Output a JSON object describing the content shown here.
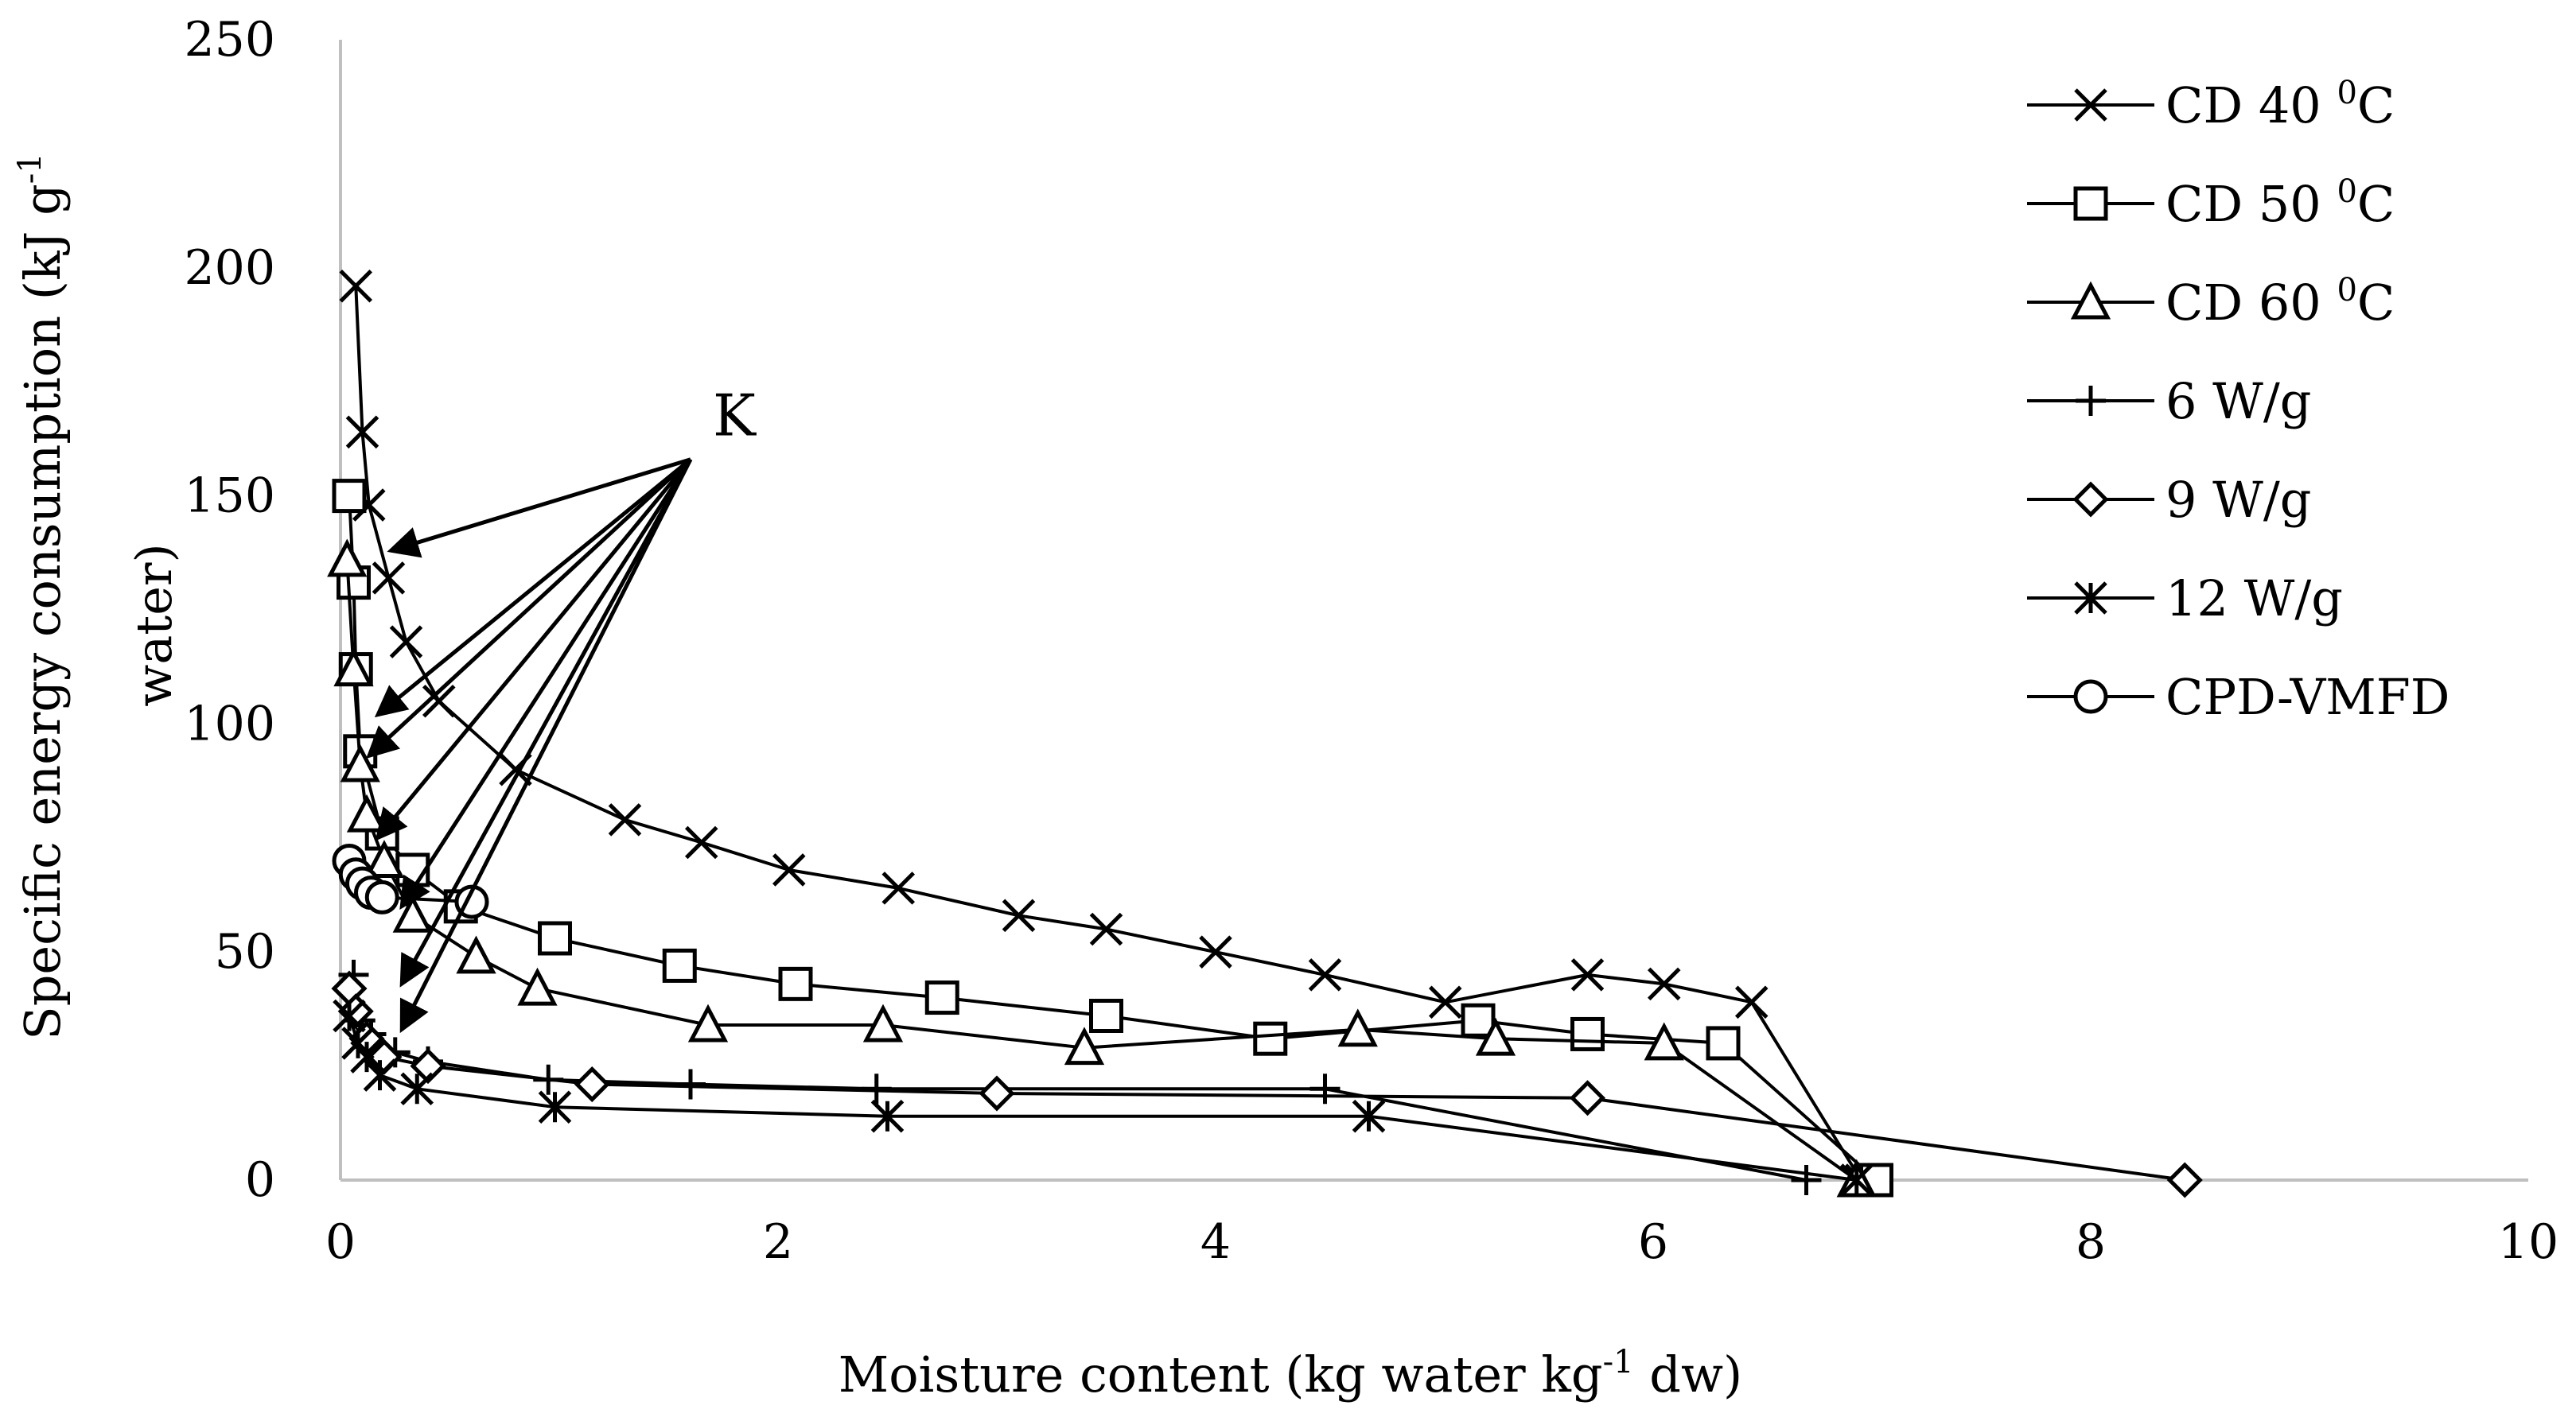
{
  "chart_data": {
    "type": "line",
    "title": "",
    "xlabel_parts": [
      "Moisture content (kg water kg",
      "-1",
      " dw)"
    ],
    "ylabel_line1_parts": [
      "Specific energy consumption (kJ g",
      "-1"
    ],
    "ylabel_line2": "water)",
    "xlim": [
      0,
      10
    ],
    "ylim": [
      0,
      250
    ],
    "x_ticks": [
      "0",
      "2",
      "4",
      "6",
      "8",
      "10"
    ],
    "y_ticks": [
      "0",
      "50",
      "100",
      "150",
      "200",
      "250"
    ],
    "grid": false,
    "legend_position": "right",
    "series": [
      {
        "name_parts": [
          "CD 40 ",
          "0",
          "C"
        ],
        "marker": "x",
        "x": [
          0.07,
          0.1,
          0.13,
          0.22,
          0.3,
          0.45,
          0.8,
          1.3,
          1.65,
          2.05,
          2.55,
          3.1,
          3.5,
          4.0,
          4.5,
          5.05,
          5.7,
          6.05,
          6.45,
          6.95
        ],
        "y": [
          196,
          164,
          148,
          132,
          118,
          105,
          90,
          79,
          74,
          68,
          64,
          58,
          55,
          50,
          45,
          39,
          45,
          43,
          39,
          0
        ]
      },
      {
        "name_parts": [
          "CD 50 ",
          "0",
          "C"
        ],
        "marker": "square",
        "x": [
          0.04,
          0.06,
          0.07,
          0.09,
          0.19,
          0.33,
          0.55,
          0.98,
          1.55,
          2.08,
          2.75,
          3.5,
          4.25,
          5.2,
          5.7,
          6.32,
          7.02
        ],
        "y": [
          150,
          131,
          112,
          94,
          76,
          68,
          60,
          53,
          47,
          43,
          40,
          36,
          31,
          35,
          32,
          30,
          0
        ]
      },
      {
        "name_parts": [
          "CD 60 ",
          "0",
          "C"
        ],
        "marker": "triangle",
        "x": [
          0.03,
          0.06,
          0.09,
          0.12,
          0.2,
          0.33,
          0.62,
          0.9,
          1.68,
          2.48,
          3.4,
          4.65,
          5.28,
          6.05,
          6.93
        ],
        "y": [
          136,
          112,
          91,
          80,
          70,
          58,
          49,
          42,
          34,
          34,
          29,
          33,
          31,
          30,
          0
        ]
      },
      {
        "name_parts": [
          "6 W/g"
        ],
        "marker": "plus",
        "x": [
          0.06,
          0.09,
          0.14,
          0.25,
          0.4,
          0.95,
          1.6,
          2.45,
          4.5,
          6.7
        ],
        "y": [
          45,
          35,
          32,
          28,
          26,
          22,
          21,
          20,
          20,
          0
        ]
      },
      {
        "name_parts": [
          "9 W/g"
        ],
        "marker": "diamond",
        "x": [
          0.04,
          0.07,
          0.12,
          0.2,
          0.4,
          1.15,
          3.0,
          5.7,
          8.43
        ],
        "y": [
          42,
          37,
          31,
          27,
          25,
          21,
          19,
          18,
          0
        ]
      },
      {
        "name_parts": [
          "12 W/g"
        ],
        "marker": "asterisk",
        "x": [
          0.04,
          0.08,
          0.12,
          0.18,
          0.35,
          0.98,
          2.5,
          4.7,
          6.93
        ],
        "y": [
          36,
          30,
          27,
          23,
          20,
          16,
          14,
          14,
          0
        ]
      },
      {
        "name_parts": [
          "CPD-VMFD"
        ],
        "marker": "circle",
        "x": [
          0.04,
          0.07,
          0.1,
          0.14,
          0.19,
          0.6
        ],
        "y": [
          70,
          67,
          65,
          63,
          62,
          61
        ]
      }
    ],
    "annotation": {
      "text": "K",
      "origin": [
        1.6,
        158
      ],
      "targets": [
        [
          0.23,
          138
        ],
        [
          0.17,
          102
        ],
        [
          0.13,
          93
        ],
        [
          0.17,
          75
        ],
        [
          0.28,
          60
        ],
        [
          0.28,
          43
        ],
        [
          0.28,
          33
        ]
      ]
    }
  }
}
